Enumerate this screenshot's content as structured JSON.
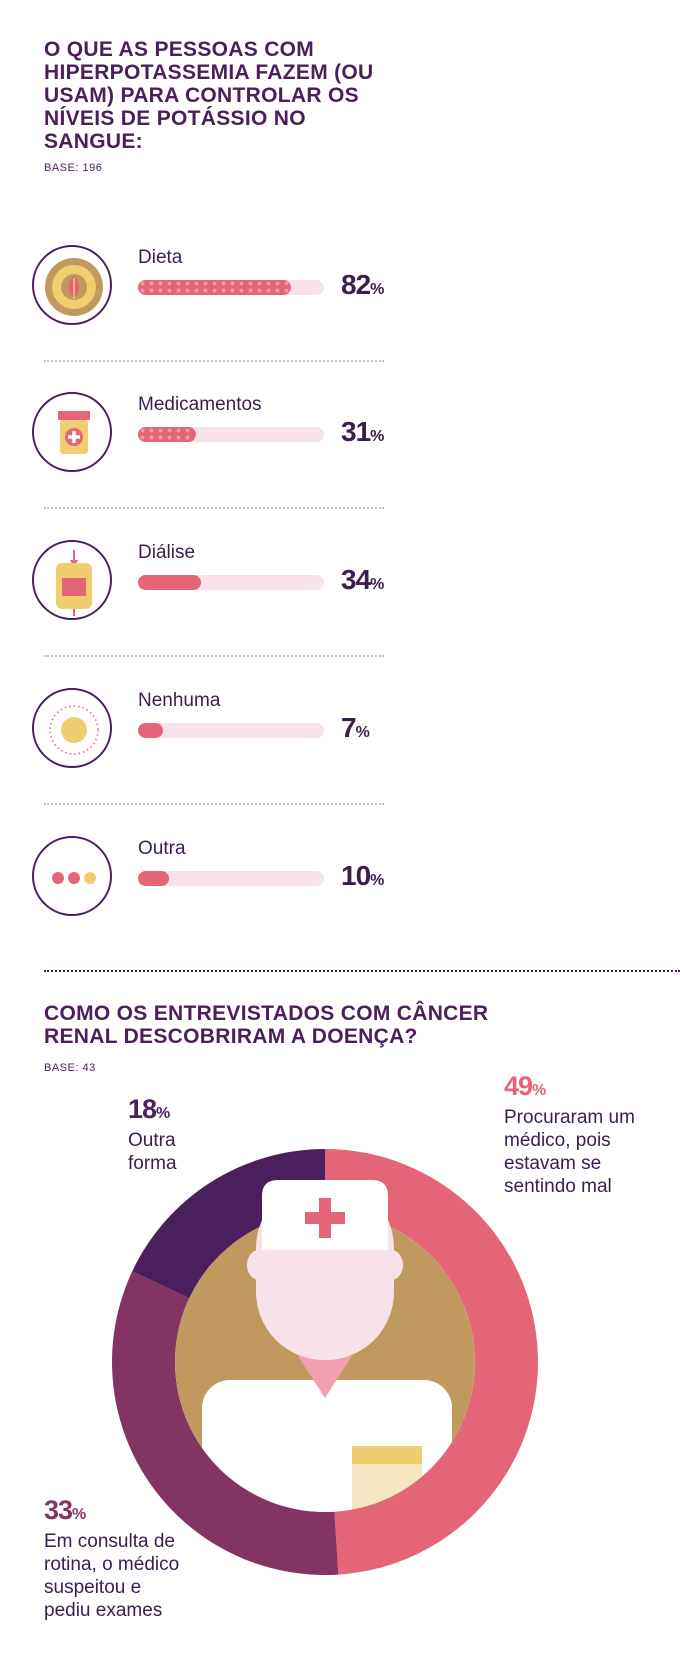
{
  "section1": {
    "title": "O QUE AS PESSOAS COM HIPERPOTASSEMIA FAZEM (OU USAM) PARA CONTROLAR OS NÍVEIS DE POTÁSSIO NO SANGUE:",
    "base": "BASE: 196"
  },
  "section2": {
    "title": "COMO OS ENTREVISTADOS COM CÂNCER RENAL DESCOBRIRAM A DOENÇA?",
    "base": "BASE: 43"
  },
  "colors": {
    "purple_dark": "#4a1f5c",
    "pink": "#e46478",
    "pink_light": "#f6e2e8",
    "plum": "#843463",
    "gold": "#c0995f",
    "yellow": "#f0cd6e"
  },
  "chart_data": [
    {
      "type": "bar",
      "title": "O QUE AS PESSOAS COM HIPERPOTASSEMIA FAZEM (OU USAM) PARA CONTROLAR OS NÍVEIS DE POTÁSSIO NO SANGUE:",
      "categories": [
        "Dieta",
        "Medicamentos",
        "Diálise",
        "Nenhuma",
        "Outra"
      ],
      "values": [
        82,
        31,
        34,
        7,
        10
      ],
      "value_labels": [
        "82",
        "31",
        "34",
        "7",
        "10"
      ],
      "unit": "%",
      "icons": [
        "leaf-plate-icon",
        "pill-bottle-icon",
        "dialysis-bag-icon",
        "empty-circle-icon",
        "ellipsis-icon"
      ],
      "xlim": [
        0,
        100
      ]
    },
    {
      "type": "pie",
      "title": "COMO OS ENTREVISTADOS COM CÂNCER RENAL DESCOBRIRAM A DOENÇA?",
      "categories": [
        "Procuraram um médico, pois estavam se sentindo mal",
        "Em consulta de rotina, o médico suspeitou e pediu exames",
        "Outra forma"
      ],
      "values": [
        49,
        33,
        18
      ],
      "value_labels": [
        "49",
        "33",
        "18"
      ],
      "unit": "%",
      "label_lines": [
        [
          "Procuraram um",
          "médico, pois",
          "estavam se",
          "sentindo mal"
        ],
        [
          "Em consulta de",
          "rotina, o médico",
          "suspeitou e",
          "pediu exames"
        ],
        [
          "Outra",
          "forma"
        ]
      ],
      "center_icon": "doctor-icon"
    }
  ]
}
